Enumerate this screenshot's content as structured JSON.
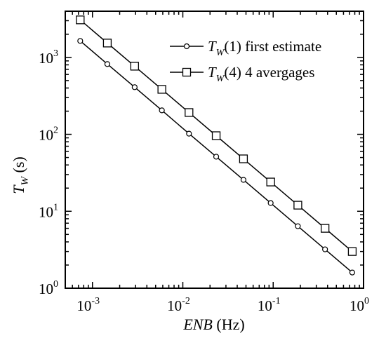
{
  "chart_data": {
    "type": "line",
    "x_scale": "log",
    "y_scale": "log",
    "xlim": [
      0.0005,
      1
    ],
    "ylim": [
      1,
      3981
    ],
    "xlabel": {
      "italic": "ENB",
      "units": " (Hz)"
    },
    "ylabel": {
      "base": "T",
      "subscript": "W",
      "units": " (s)"
    },
    "x_ticks": [
      {
        "base": "10",
        "exp": "-3",
        "value": 0.001
      },
      {
        "base": "10",
        "exp": "-2",
        "value": 0.01
      },
      {
        "base": "10",
        "exp": "-1",
        "value": 0.1
      },
      {
        "base": "10",
        "exp": "0",
        "value": 1
      }
    ],
    "y_ticks": [
      {
        "base": "10",
        "exp": "0",
        "value": 1
      },
      {
        "base": "10",
        "exp": "1",
        "value": 10
      },
      {
        "base": "10",
        "exp": "2",
        "value": 100
      },
      {
        "base": "10",
        "exp": "3",
        "value": 1000
      }
    ],
    "legend_position": "top-right",
    "grid": false,
    "series": [
      {
        "name": "T_W(1) first estimate",
        "legend": {
          "base": "T",
          "sub": "W",
          "rest": "(1) first estimate"
        },
        "marker": "circle",
        "x": [
          0.000732,
          0.00146,
          0.00293,
          0.00586,
          0.0117,
          0.0234,
          0.0469,
          0.0938,
          0.1875,
          0.375,
          0.75
        ],
        "y": [
          1638,
          819,
          410,
          205,
          102,
          51.2,
          25.6,
          12.8,
          6.4,
          3.2,
          1.6
        ]
      },
      {
        "name": "T_W(4) 4 avergages",
        "legend": {
          "base": "T",
          "sub": "W",
          "rest": "(4)  4 avergages"
        },
        "marker": "square",
        "x": [
          0.000732,
          0.00146,
          0.00293,
          0.00586,
          0.0117,
          0.0234,
          0.0469,
          0.0938,
          0.1875,
          0.375,
          0.75
        ],
        "y": [
          3072,
          1536,
          768,
          384,
          192,
          96,
          48,
          24,
          12,
          6,
          3
        ]
      }
    ]
  }
}
